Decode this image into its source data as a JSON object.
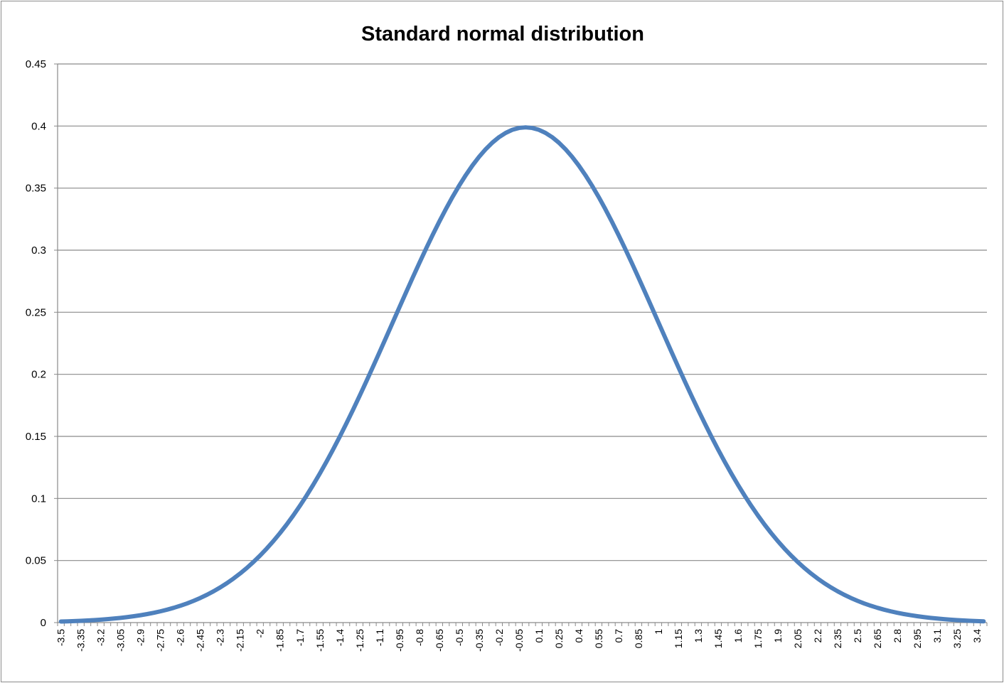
{
  "chart_data": {
    "type": "line",
    "title": "Standard normal distribution",
    "xlabel": "",
    "ylabel": "",
    "x_start": -3.5,
    "x_end": 3.45,
    "x_step": 0.05,
    "x_label_every": 3,
    "ylim": [
      0,
      0.45
    ],
    "yticks": [
      "0",
      "0.05",
      "0.1",
      "0.15",
      "0.2",
      "0.25",
      "0.3",
      "0.35",
      "0.4",
      "0.45"
    ],
    "grid": true,
    "legend": "none",
    "series": [
      {
        "function": "standard normal probability density",
        "mean": 0,
        "sd": 1
      }
    ],
    "line_color": "#4f81bd"
  }
}
